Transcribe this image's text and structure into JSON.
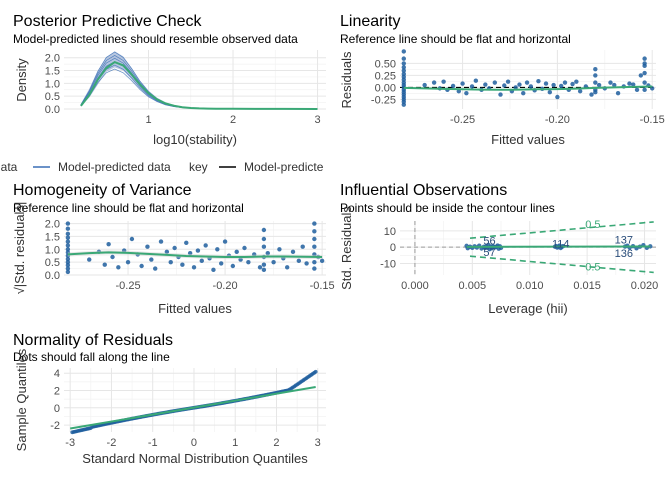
{
  "colors": {
    "observed": "#3aa876",
    "model": "#3a6fb5",
    "point": "#1f5e9e",
    "fit": "#3aa876",
    "band": "#9db3d6",
    "ref": "#000000",
    "contour": "#3aa876",
    "grid": "#e6e6e6"
  },
  "legend": {
    "observed_label": "data",
    "model_label": "Model-predicted data",
    "key_title": "key",
    "ref_label": "Model-predicte"
  },
  "chart_data": [
    {
      "id": "ppc",
      "type": "line",
      "title": "Posterior Predictive Check",
      "subtitle": "Model-predicted lines should resemble observed data",
      "xlabel": "log10(stability)",
      "ylabel": "Density",
      "xlim": [
        0,
        3.1
      ],
      "ylim": [
        0,
        2.3
      ],
      "xticks": [
        1,
        2,
        3
      ],
      "yticks": [
        0.0,
        0.5,
        1.0,
        1.5,
        2.0
      ],
      "ytick_labels": [
        "0.0",
        "0.5",
        "1.0",
        "1.5",
        "2.0"
      ],
      "grid": true,
      "series": [
        {
          "name": "Observed data",
          "x": [
            0.2,
            0.3,
            0.4,
            0.5,
            0.6,
            0.7,
            0.8,
            0.9,
            1.0,
            1.1,
            1.2,
            1.3,
            1.4,
            1.5,
            1.6,
            1.7,
            1.8,
            2.0,
            2.3,
            2.6,
            3.0
          ],
          "y": [
            0.12,
            0.55,
            1.15,
            1.6,
            1.83,
            1.7,
            1.35,
            0.95,
            0.62,
            0.38,
            0.22,
            0.13,
            0.07,
            0.04,
            0.025,
            0.015,
            0.01,
            0.006,
            0.003,
            0.002,
            0.001
          ]
        },
        {
          "name": "Model-predicted data",
          "x": [
            0.2,
            0.3,
            0.4,
            0.5,
            0.6,
            0.7,
            0.8,
            0.9,
            1.0,
            1.1,
            1.2,
            1.3,
            1.4,
            1.5,
            1.6,
            1.7,
            1.8,
            2.0,
            2.3,
            2.6,
            3.0
          ],
          "y": [
            0.15,
            0.62,
            1.25,
            1.72,
            1.9,
            1.72,
            1.35,
            0.92,
            0.58,
            0.35,
            0.2,
            0.11,
            0.06,
            0.035,
            0.02,
            0.012,
            0.008,
            0.005,
            0.003,
            0.002,
            0.001
          ],
          "band_low": [
            0.1,
            0.45,
            0.95,
            1.45,
            1.62,
            1.5,
            1.15,
            0.78,
            0.48,
            0.28,
            0.15,
            0.08,
            0.045,
            0.025,
            0.014,
            0.008,
            0.005,
            0.003,
            0.002,
            0.001,
            0.0005
          ],
          "band_high": [
            0.2,
            0.8,
            1.5,
            2.02,
            2.25,
            2.05,
            1.6,
            1.1,
            0.72,
            0.44,
            0.26,
            0.15,
            0.085,
            0.05,
            0.03,
            0.018,
            0.012,
            0.008,
            0.004,
            0.003,
            0.002
          ]
        }
      ]
    },
    {
      "id": "linearity",
      "type": "scatter",
      "title": "Linearity",
      "subtitle": "Reference line should be flat and horizontal",
      "xlabel": "Fitted values",
      "ylabel": "Residuals",
      "xlim": [
        -0.283,
        -0.148
      ],
      "ylim": [
        -0.45,
        0.78
      ],
      "xticks": [
        -0.25,
        -0.2,
        -0.15
      ],
      "xtick_labels": [
        "-0.25",
        "-0.20",
        "-0.15"
      ],
      "yticks": [
        -0.25,
        0.0,
        0.25,
        0.5
      ],
      "ytick_labels": [
        "-0.25",
        "0.00",
        "0.25",
        "0.50"
      ],
      "grid": true,
      "reference_y": 0,
      "points": [
        [
          -0.281,
          0.75
        ],
        [
          -0.281,
          0.6
        ],
        [
          -0.281,
          0.5
        ],
        [
          -0.281,
          0.42
        ],
        [
          -0.281,
          0.35
        ],
        [
          -0.281,
          0.28
        ],
        [
          -0.281,
          0.22
        ],
        [
          -0.281,
          0.16
        ],
        [
          -0.281,
          0.1
        ],
        [
          -0.281,
          0.05
        ],
        [
          -0.281,
          0.0
        ],
        [
          -0.281,
          -0.05
        ],
        [
          -0.281,
          -0.1
        ],
        [
          -0.281,
          -0.15
        ],
        [
          -0.281,
          -0.2
        ],
        [
          -0.281,
          -0.25
        ],
        [
          -0.281,
          -0.3
        ],
        [
          -0.281,
          -0.36
        ],
        [
          -0.27,
          0.05
        ],
        [
          -0.265,
          0.1
        ],
        [
          -0.262,
          -0.02
        ],
        [
          -0.26,
          0.12
        ],
        [
          -0.258,
          -0.05
        ],
        [
          -0.255,
          0.03
        ],
        [
          -0.252,
          -0.08
        ],
        [
          -0.25,
          0.08
        ],
        [
          -0.248,
          -0.12
        ],
        [
          -0.245,
          0.02
        ],
        [
          -0.243,
          0.14
        ],
        [
          -0.24,
          -0.05
        ],
        [
          -0.238,
          0.06
        ],
        [
          -0.236,
          -0.02
        ],
        [
          -0.233,
          0.1
        ],
        [
          -0.23,
          -0.15
        ],
        [
          -0.228,
          0.04
        ],
        [
          -0.226,
          0.12
        ],
        [
          -0.224,
          -0.08
        ],
        [
          -0.222,
          0.0
        ],
        [
          -0.22,
          0.06
        ],
        [
          -0.218,
          -0.12
        ],
        [
          -0.216,
          0.1
        ],
        [
          -0.214,
          0.02
        ],
        [
          -0.212,
          -0.06
        ],
        [
          -0.21,
          0.13
        ],
        [
          -0.208,
          -0.03
        ],
        [
          -0.206,
          0.08
        ],
        [
          -0.204,
          -0.1
        ],
        [
          -0.202,
          0.05
        ],
        [
          -0.2,
          -0.2
        ],
        [
          -0.198,
          0.03
        ],
        [
          -0.196,
          0.1
        ],
        [
          -0.194,
          -0.05
        ],
        [
          -0.192,
          0.07
        ],
        [
          -0.19,
          0.12
        ],
        [
          -0.188,
          -0.08
        ],
        [
          -0.185,
          0.02
        ],
        [
          -0.182,
          -0.15
        ],
        [
          -0.18,
          0.38
        ],
        [
          -0.18,
          0.25
        ],
        [
          -0.18,
          0.1
        ],
        [
          -0.18,
          -0.05
        ],
        [
          -0.18,
          -0.1
        ],
        [
          -0.178,
          0.05
        ],
        [
          -0.175,
          -0.02
        ],
        [
          -0.172,
          0.1
        ],
        [
          -0.17,
          0.05
        ],
        [
          -0.168,
          -0.12
        ],
        [
          -0.165,
          0.02
        ],
        [
          -0.162,
          0.08
        ],
        [
          -0.16,
          0.06
        ],
        [
          -0.158,
          -0.05
        ],
        [
          -0.156,
          0.25
        ],
        [
          -0.154,
          0.6
        ],
        [
          -0.154,
          0.5
        ],
        [
          -0.154,
          0.45
        ],
        [
          -0.154,
          0.3
        ],
        [
          -0.154,
          0.1
        ],
        [
          -0.154,
          -0.05
        ],
        [
          -0.152,
          0.04
        ],
        [
          -0.15,
          -0.02
        ]
      ],
      "fit": {
        "x": [
          -0.281,
          -0.27,
          -0.26,
          -0.25,
          -0.24,
          -0.23,
          -0.22,
          -0.21,
          -0.2,
          -0.19,
          -0.18,
          -0.17,
          -0.16,
          -0.15
        ],
        "y": [
          -0.01,
          -0.02,
          -0.03,
          -0.04,
          -0.045,
          -0.05,
          -0.045,
          -0.04,
          -0.035,
          -0.025,
          -0.01,
          0.0,
          0.01,
          0.02
        ]
      }
    },
    {
      "id": "homogeneity",
      "type": "scatter",
      "title": "Homogeneity of Variance",
      "subtitle": "Reference line should be flat and horizontal",
      "xlabel": "Fitted values",
      "ylabel": "√|Std. residuals|",
      "xlim": [
        -0.283,
        -0.148
      ],
      "ylim": [
        0,
        2.1
      ],
      "xticks": [
        -0.25,
        -0.2,
        -0.15
      ],
      "xtick_labels": [
        "-0.25",
        "-0.20",
        "-0.15"
      ],
      "yticks": [
        0.0,
        0.5,
        1.0,
        1.5,
        2.0
      ],
      "ytick_labels": [
        "0.0",
        "0.5",
        "1.0",
        "1.5",
        "2.0"
      ],
      "grid": true,
      "points": [
        [
          -0.281,
          2.0
        ],
        [
          -0.281,
          1.8
        ],
        [
          -0.281,
          1.6
        ],
        [
          -0.281,
          1.45
        ],
        [
          -0.281,
          1.3
        ],
        [
          -0.281,
          1.15
        ],
        [
          -0.281,
          1.0
        ],
        [
          -0.281,
          0.88
        ],
        [
          -0.281,
          0.75
        ],
        [
          -0.281,
          0.62
        ],
        [
          -0.281,
          0.5
        ],
        [
          -0.281,
          0.38
        ],
        [
          -0.281,
          0.25
        ],
        [
          -0.281,
          0.12
        ],
        [
          -0.27,
          0.6
        ],
        [
          -0.265,
          0.9
        ],
        [
          -0.262,
          0.4
        ],
        [
          -0.26,
          1.2
        ],
        [
          -0.258,
          0.7
        ],
        [
          -0.255,
          0.3
        ],
        [
          -0.252,
          0.95
        ],
        [
          -0.25,
          0.5
        ],
        [
          -0.248,
          1.4
        ],
        [
          -0.245,
          0.8
        ],
        [
          -0.243,
          0.35
        ],
        [
          -0.24,
          1.1
        ],
        [
          -0.238,
          0.6
        ],
        [
          -0.236,
          0.25
        ],
        [
          -0.233,
          1.3
        ],
        [
          -0.23,
          0.9
        ],
        [
          -0.228,
          0.5
        ],
        [
          -0.226,
          1.05
        ],
        [
          -0.224,
          0.7
        ],
        [
          -0.222,
          0.4
        ],
        [
          -0.22,
          1.25
        ],
        [
          -0.218,
          0.85
        ],
        [
          -0.216,
          0.3
        ],
        [
          -0.214,
          0.95
        ],
        [
          -0.212,
          0.55
        ],
        [
          -0.21,
          1.15
        ],
        [
          -0.208,
          0.65
        ],
        [
          -0.206,
          0.2
        ],
        [
          -0.204,
          1.0
        ],
        [
          -0.202,
          0.45
        ],
        [
          -0.2,
          1.3
        ],
        [
          -0.198,
          0.75
        ],
        [
          -0.196,
          0.35
        ],
        [
          -0.194,
          0.9
        ],
        [
          -0.192,
          0.6
        ],
        [
          -0.19,
          1.05
        ],
        [
          -0.188,
          0.5
        ],
        [
          -0.185,
          0.8
        ],
        [
          -0.182,
          0.3
        ],
        [
          -0.18,
          1.75
        ],
        [
          -0.18,
          1.4
        ],
        [
          -0.18,
          1.1
        ],
        [
          -0.18,
          0.7
        ],
        [
          -0.18,
          0.4
        ],
        [
          -0.18,
          0.2
        ],
        [
          -0.178,
          0.85
        ],
        [
          -0.175,
          0.5
        ],
        [
          -0.172,
          1.0
        ],
        [
          -0.17,
          0.65
        ],
        [
          -0.168,
          0.3
        ],
        [
          -0.165,
          0.9
        ],
        [
          -0.162,
          0.55
        ],
        [
          -0.16,
          1.1
        ],
        [
          -0.158,
          0.45
        ],
        [
          -0.154,
          2.0
        ],
        [
          -0.154,
          1.7
        ],
        [
          -0.154,
          1.4
        ],
        [
          -0.154,
          1.1
        ],
        [
          -0.154,
          0.8
        ],
        [
          -0.154,
          0.5
        ],
        [
          -0.154,
          0.25
        ],
        [
          -0.152,
          0.7
        ],
        [
          -0.15,
          0.55
        ]
      ],
      "fit": {
        "x": [
          -0.281,
          -0.27,
          -0.26,
          -0.25,
          -0.24,
          -0.23,
          -0.22,
          -0.21,
          -0.2,
          -0.19,
          -0.18,
          -0.17,
          -0.16,
          -0.15
        ],
        "y": [
          0.8,
          0.85,
          0.88,
          0.86,
          0.82,
          0.78,
          0.74,
          0.72,
          0.7,
          0.7,
          0.72,
          0.72,
          0.71,
          0.7
        ]
      }
    },
    {
      "id": "influential",
      "type": "scatter",
      "title": "Influential Observations",
      "subtitle": "Points should be inside the contour lines",
      "xlabel": "Leverage (hii)",
      "ylabel": "Std. Residuals",
      "xlim": [
        -0.0013,
        0.021
      ],
      "ylim": [
        -17,
        16
      ],
      "xticks": [
        0.0,
        0.005,
        0.01,
        0.015,
        0.02
      ],
      "xtick_labels": [
        "0.000",
        "0.005",
        "0.010",
        "0.015",
        "0.020"
      ],
      "yticks": [
        -10,
        0,
        10
      ],
      "ytick_labels": [
        "-10",
        "0",
        "10"
      ],
      "grid": true,
      "contour_level": "0.5",
      "labels": [
        {
          "x": 0.0065,
          "y": 3.5,
          "text": "56"
        },
        {
          "x": 0.0065,
          "y": -3.5,
          "text": "57"
        },
        {
          "x": 0.0127,
          "y": 1.5,
          "text": "114"
        },
        {
          "x": 0.0182,
          "y": 4.2,
          "text": "137"
        },
        {
          "x": 0.0182,
          "y": -4.2,
          "text": "136"
        }
      ],
      "contour_labels": [
        {
          "x": 0.0155,
          "y": 13.5,
          "text": "0.5"
        },
        {
          "x": 0.0155,
          "y": -12.5,
          "text": "0.5"
        }
      ],
      "points": [
        [
          0.0045,
          0.8
        ],
        [
          0.0046,
          -0.6
        ],
        [
          0.0048,
          0.3
        ],
        [
          0.005,
          -0.4
        ],
        [
          0.0052,
          0.5
        ],
        [
          0.0054,
          -0.2
        ],
        [
          0.0056,
          0.9
        ],
        [
          0.0058,
          -0.8
        ],
        [
          0.006,
          0.2
        ],
        [
          0.0061,
          -0.5
        ],
        [
          0.0062,
          0.6
        ],
        [
          0.0063,
          -0.3
        ],
        [
          0.0064,
          1.4
        ],
        [
          0.0065,
          -1.2
        ],
        [
          0.0066,
          0.4
        ],
        [
          0.0067,
          -0.7
        ],
        [
          0.0068,
          0.7
        ],
        [
          0.0069,
          0.1
        ],
        [
          0.007,
          -0.1
        ],
        [
          0.0071,
          0.3
        ],
        [
          0.0072,
          1.0
        ],
        [
          0.0073,
          -0.9
        ],
        [
          0.0074,
          0.5
        ],
        [
          0.0075,
          -0.4
        ],
        [
          0.0122,
          0.3
        ],
        [
          0.0123,
          0.7
        ],
        [
          0.0124,
          -0.2
        ],
        [
          0.0125,
          0.4
        ],
        [
          0.0126,
          1.0
        ],
        [
          0.0127,
          -0.5
        ],
        [
          0.0128,
          0.2
        ],
        [
          0.0129,
          0.6
        ],
        [
          0.0183,
          0.4
        ],
        [
          0.0185,
          0.9
        ],
        [
          0.0187,
          -0.3
        ],
        [
          0.019,
          0.6
        ],
        [
          0.0193,
          -0.7
        ],
        [
          0.0196,
          0.3
        ],
        [
          0.0199,
          1.2
        ],
        [
          0.0202,
          -0.4
        ],
        [
          0.0205,
          0.5
        ]
      ]
    },
    {
      "id": "qq",
      "type": "scatter",
      "title": "Normality of Residuals",
      "subtitle": "Dots should fall along the line",
      "xlabel": "Standard Normal Distribution Quantiles",
      "ylabel": "Sample Quantiles",
      "xlim": [
        -3.15,
        3.2
      ],
      "ylim": [
        -2.8,
        4.6
      ],
      "xticks": [
        -3,
        -2,
        -1,
        0,
        1,
        2,
        3
      ],
      "yticks": [
        -2,
        0,
        2,
        4
      ],
      "grid": true,
      "line": {
        "x": [
          -3.0,
          2.95
        ],
        "y": [
          -2.4,
          2.4
        ]
      }
    }
  ]
}
